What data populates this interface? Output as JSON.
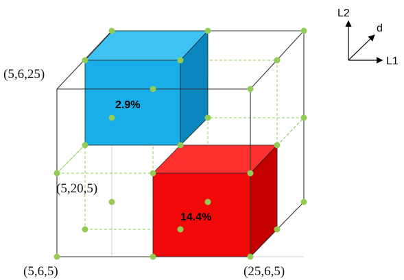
{
  "colors": {
    "blue_front": "#19aee8",
    "blue_top": "#3fc3f2",
    "blue_side": "#0b87c0",
    "red_front": "#f20a0a",
    "red_top": "#ff3030",
    "red_side": "#c40000",
    "node": "#92cc55",
    "dashed_line": "#8ccc55",
    "frame_line": "#333333"
  },
  "corner_labels": {
    "top_left": "(5,6,25)",
    "middle": "(5,20,5)",
    "bottom_left": "(5,6,5)",
    "bottom_right": "(25,6,5)"
  },
  "axes": {
    "up": "L2",
    "diagonal": "d",
    "right": "L1"
  },
  "blocks": {
    "blue": {
      "value": "2.9%"
    },
    "red": {
      "value": "14.4%"
    }
  }
}
